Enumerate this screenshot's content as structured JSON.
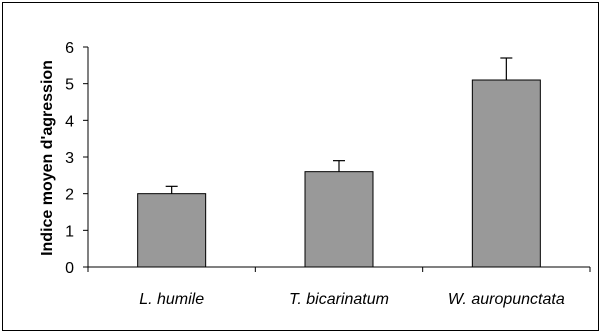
{
  "chart_data": {
    "type": "bar",
    "categories": [
      "L. humile",
      "T. bicarinatum",
      "W. auropunctata"
    ],
    "values": [
      2.0,
      2.6,
      5.1
    ],
    "error": [
      0.2,
      0.3,
      0.6
    ],
    "title": "",
    "xlabel": "",
    "ylabel": "Indice moyen d'agression",
    "ylim": [
      0,
      6
    ],
    "yticks": [
      "0",
      "1",
      "2",
      "3",
      "4",
      "5",
      "6"
    ],
    "grid": false,
    "bar_color": "#999999"
  }
}
